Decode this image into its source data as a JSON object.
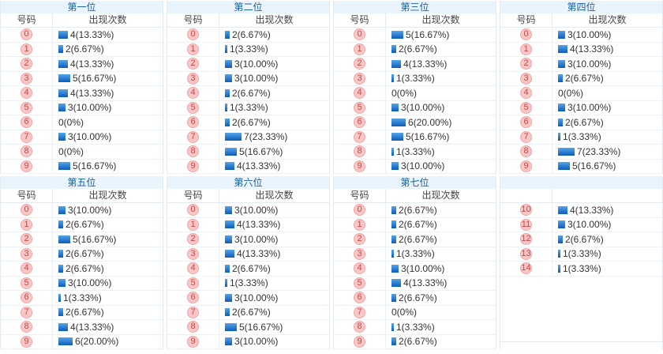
{
  "labels": {
    "number_header": "号码",
    "count_header": "出现次数"
  },
  "colors": {
    "page_bg": "#ffffff",
    "title_bg": "#e9f4fc",
    "title_text": "#1c5fa5",
    "header_text": "#444444",
    "table_border": "#e3eaf0",
    "row_border": "#ecf1f5",
    "badge_bg": "#fbc6c6",
    "badge_border": "#f1a3a3",
    "badge_text": "#c24848",
    "bar_grad_top": "#55a4eb",
    "bar_grad_bottom": "#0d5cb8",
    "bar_text": "#333333"
  },
  "tables": [
    {
      "title": "第一位",
      "headers": [
        "号码",
        "出现次数"
      ],
      "rows": [
        {
          "num": "0",
          "count": 4,
          "label": "4(13.33%)"
        },
        {
          "num": "1",
          "count": 2,
          "label": "2(6.67%)"
        },
        {
          "num": "2",
          "count": 4,
          "label": "4(13.33%)"
        },
        {
          "num": "3",
          "count": 5,
          "label": "5(16.67%)"
        },
        {
          "num": "4",
          "count": 4,
          "label": "4(13.33%)"
        },
        {
          "num": "5",
          "count": 3,
          "label": "3(10.00%)"
        },
        {
          "num": "6",
          "count": 0,
          "label": "0(0%)"
        },
        {
          "num": "7",
          "count": 3,
          "label": "3(10.00%)"
        },
        {
          "num": "8",
          "count": 0,
          "label": "0(0%)"
        },
        {
          "num": "9",
          "count": 5,
          "label": "5(16.67%)"
        }
      ]
    },
    {
      "title": "第二位",
      "headers": [
        "号码",
        "出现次数"
      ],
      "rows": [
        {
          "num": "0",
          "count": 2,
          "label": "2(6.67%)"
        },
        {
          "num": "1",
          "count": 1,
          "label": "1(3.33%)"
        },
        {
          "num": "2",
          "count": 3,
          "label": "3(10.00%)"
        },
        {
          "num": "3",
          "count": 3,
          "label": "3(10.00%)"
        },
        {
          "num": "4",
          "count": 2,
          "label": "2(6.67%)"
        },
        {
          "num": "5",
          "count": 1,
          "label": "1(3.33%)"
        },
        {
          "num": "6",
          "count": 2,
          "label": "2(6.67%)"
        },
        {
          "num": "7",
          "count": 7,
          "label": "7(23.33%)"
        },
        {
          "num": "8",
          "count": 5,
          "label": "5(16.67%)"
        },
        {
          "num": "9",
          "count": 4,
          "label": "4(13.33%)"
        }
      ]
    },
    {
      "title": "第三位",
      "headers": [
        "号码",
        "出现次数"
      ],
      "rows": [
        {
          "num": "0",
          "count": 5,
          "label": "5(16.67%)"
        },
        {
          "num": "1",
          "count": 2,
          "label": "2(6.67%)"
        },
        {
          "num": "2",
          "count": 4,
          "label": "4(13.33%)"
        },
        {
          "num": "3",
          "count": 1,
          "label": "1(3.33%)"
        },
        {
          "num": "4",
          "count": 0,
          "label": "0(0%)"
        },
        {
          "num": "5",
          "count": 3,
          "label": "3(10.00%)"
        },
        {
          "num": "6",
          "count": 6,
          "label": "6(20.00%)"
        },
        {
          "num": "7",
          "count": 5,
          "label": "5(16.67%)"
        },
        {
          "num": "8",
          "count": 1,
          "label": "1(3.33%)"
        },
        {
          "num": "9",
          "count": 3,
          "label": "3(10.00%)"
        }
      ]
    },
    {
      "title": "第四位",
      "headers": [
        "号码",
        "出现次数"
      ],
      "rows": [
        {
          "num": "0",
          "count": 3,
          "label": "3(10.00%)"
        },
        {
          "num": "1",
          "count": 4,
          "label": "4(13.33%)"
        },
        {
          "num": "2",
          "count": 3,
          "label": "3(10.00%)"
        },
        {
          "num": "3",
          "count": 2,
          "label": "2(6.67%)"
        },
        {
          "num": "4",
          "count": 0,
          "label": "0(0%)"
        },
        {
          "num": "5",
          "count": 3,
          "label": "3(10.00%)"
        },
        {
          "num": "6",
          "count": 2,
          "label": "2(6.67%)"
        },
        {
          "num": "7",
          "count": 1,
          "label": "1(3.33%)"
        },
        {
          "num": "8",
          "count": 7,
          "label": "7(23.33%)"
        },
        {
          "num": "9",
          "count": 5,
          "label": "5(16.67%)"
        }
      ]
    },
    {
      "title": "第五位",
      "headers": [
        "号码",
        "出现次数"
      ],
      "rows": [
        {
          "num": "0",
          "count": 3,
          "label": "3(10.00%)"
        },
        {
          "num": "1",
          "count": 2,
          "label": "2(6.67%)"
        },
        {
          "num": "2",
          "count": 5,
          "label": "5(16.67%)"
        },
        {
          "num": "3",
          "count": 2,
          "label": "2(6.67%)"
        },
        {
          "num": "4",
          "count": 2,
          "label": "2(6.67%)"
        },
        {
          "num": "5",
          "count": 3,
          "label": "3(10.00%)"
        },
        {
          "num": "6",
          "count": 1,
          "label": "1(3.33%)"
        },
        {
          "num": "7",
          "count": 2,
          "label": "2(6.67%)"
        },
        {
          "num": "8",
          "count": 4,
          "label": "4(13.33%)"
        },
        {
          "num": "9",
          "count": 6,
          "label": "6(20.00%)"
        }
      ]
    },
    {
      "title": "第六位",
      "headers": [
        "号码",
        "出现次数"
      ],
      "rows": [
        {
          "num": "0",
          "count": 3,
          "label": "3(10.00%)"
        },
        {
          "num": "1",
          "count": 4,
          "label": "4(13.33%)"
        },
        {
          "num": "2",
          "count": 3,
          "label": "3(10.00%)"
        },
        {
          "num": "3",
          "count": 4,
          "label": "4(13.33%)"
        },
        {
          "num": "4",
          "count": 2,
          "label": "2(6.67%)"
        },
        {
          "num": "5",
          "count": 1,
          "label": "1(3.33%)"
        },
        {
          "num": "6",
          "count": 3,
          "label": "3(10.00%)"
        },
        {
          "num": "7",
          "count": 2,
          "label": "2(6.67%)"
        },
        {
          "num": "8",
          "count": 5,
          "label": "5(16.67%)"
        },
        {
          "num": "9",
          "count": 3,
          "label": "3(10.00%)"
        }
      ]
    },
    {
      "title": "第七位",
      "headers": [
        "号码",
        "出现次数"
      ],
      "rows": [
        {
          "num": "0",
          "count": 2,
          "label": "2(6.67%)"
        },
        {
          "num": "1",
          "count": 2,
          "label": "2(6.67%)"
        },
        {
          "num": "2",
          "count": 2,
          "label": "2(6.67%)"
        },
        {
          "num": "3",
          "count": 1,
          "label": "1(3.33%)"
        },
        {
          "num": "4",
          "count": 3,
          "label": "3(10.00%)"
        },
        {
          "num": "5",
          "count": 4,
          "label": "4(13.33%)"
        },
        {
          "num": "6",
          "count": 2,
          "label": "2(6.67%)"
        },
        {
          "num": "7",
          "count": 0,
          "label": "0(0%)"
        },
        {
          "num": "8",
          "count": 1,
          "label": "1(3.33%)"
        },
        {
          "num": "9",
          "count": 2,
          "label": "2(6.67%)"
        }
      ]
    },
    {
      "title": "",
      "headers": [
        "",
        ""
      ],
      "filler": true,
      "rows": [
        {
          "num": "10",
          "count": 4,
          "label": "4(13.33%)"
        },
        {
          "num": "11",
          "count": 3,
          "label": "3(10.00%)"
        },
        {
          "num": "12",
          "count": 2,
          "label": "2(6.67%)"
        },
        {
          "num": "13",
          "count": 1,
          "label": "1(3.33%)"
        },
        {
          "num": "14",
          "count": 1,
          "label": "1(3.33%)"
        }
      ]
    }
  ],
  "chart_data": [
    {
      "type": "bar",
      "title": "第一位",
      "xlabel": "号码",
      "ylabel": "出现次数",
      "categories": [
        "0",
        "1",
        "2",
        "3",
        "4",
        "5",
        "6",
        "7",
        "8",
        "9"
      ],
      "values": [
        4,
        2,
        4,
        5,
        4,
        3,
        0,
        3,
        0,
        5
      ]
    },
    {
      "type": "bar",
      "title": "第二位",
      "xlabel": "号码",
      "ylabel": "出现次数",
      "categories": [
        "0",
        "1",
        "2",
        "3",
        "4",
        "5",
        "6",
        "7",
        "8",
        "9"
      ],
      "values": [
        2,
        1,
        3,
        3,
        2,
        1,
        2,
        7,
        5,
        4
      ]
    },
    {
      "type": "bar",
      "title": "第三位",
      "xlabel": "号码",
      "ylabel": "出现次数",
      "categories": [
        "0",
        "1",
        "2",
        "3",
        "4",
        "5",
        "6",
        "7",
        "8",
        "9"
      ],
      "values": [
        5,
        2,
        4,
        1,
        0,
        3,
        6,
        5,
        1,
        3
      ]
    },
    {
      "type": "bar",
      "title": "第四位",
      "xlabel": "号码",
      "ylabel": "出现次数",
      "categories": [
        "0",
        "1",
        "2",
        "3",
        "4",
        "5",
        "6",
        "7",
        "8",
        "9"
      ],
      "values": [
        3,
        4,
        3,
        2,
        0,
        3,
        2,
        1,
        7,
        5
      ]
    },
    {
      "type": "bar",
      "title": "第五位",
      "xlabel": "号码",
      "ylabel": "出现次数",
      "categories": [
        "0",
        "1",
        "2",
        "3",
        "4",
        "5",
        "6",
        "7",
        "8",
        "9"
      ],
      "values": [
        3,
        2,
        5,
        2,
        2,
        3,
        1,
        2,
        4,
        6
      ]
    },
    {
      "type": "bar",
      "title": "第六位",
      "xlabel": "号码",
      "ylabel": "出现次数",
      "categories": [
        "0",
        "1",
        "2",
        "3",
        "4",
        "5",
        "6",
        "7",
        "8",
        "9"
      ],
      "values": [
        3,
        4,
        3,
        4,
        2,
        1,
        3,
        2,
        5,
        3
      ]
    },
    {
      "type": "bar",
      "title": "第七位",
      "xlabel": "号码",
      "ylabel": "出现次数",
      "categories": [
        "0",
        "1",
        "2",
        "3",
        "4",
        "5",
        "6",
        "7",
        "8",
        "9"
      ],
      "values": [
        2,
        2,
        2,
        1,
        3,
        4,
        2,
        0,
        1,
        2
      ]
    },
    {
      "type": "bar",
      "title": "",
      "xlabel": "号码",
      "ylabel": "出现次数",
      "categories": [
        "10",
        "11",
        "12",
        "13",
        "14"
      ],
      "values": [
        4,
        3,
        2,
        1,
        1
      ]
    }
  ]
}
